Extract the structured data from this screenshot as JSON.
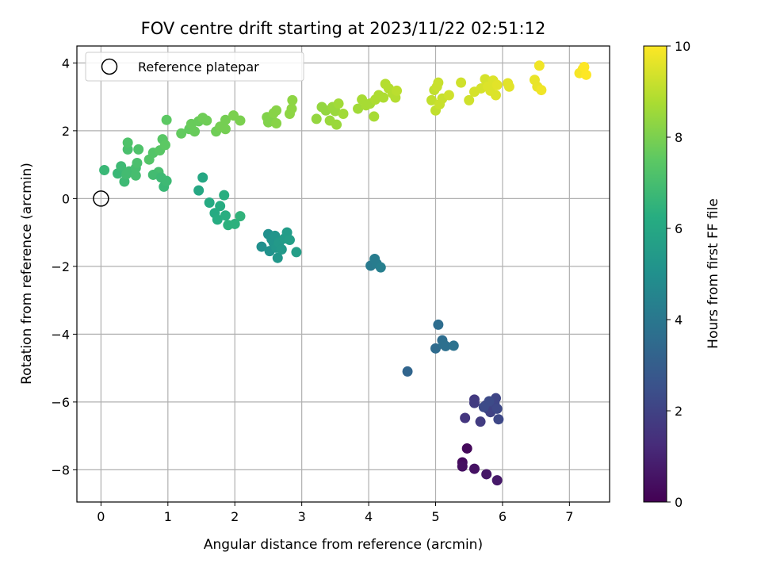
{
  "chart_data": {
    "type": "scatter",
    "title": "FOV centre drift starting at 2023/11/22 02:51:12",
    "xlabel": "Angular distance from reference (arcmin)",
    "ylabel": "Rotation from reference (arcmin)",
    "xlim": [
      -0.36,
      7.6
    ],
    "ylim": [
      -8.95,
      4.5
    ],
    "x_ticks": [
      0,
      1,
      2,
      3,
      4,
      5,
      6,
      7
    ],
    "y_ticks": [
      -8,
      -6,
      -4,
      -2,
      0,
      2,
      4
    ],
    "grid": true,
    "legend": {
      "position": "top-left",
      "entries": [
        "Reference platepar"
      ]
    },
    "reference_point": {
      "x": 0,
      "y": 0
    },
    "colorbar": {
      "label": "Hours from first FF file",
      "colormap": "viridis",
      "range": [
        0,
        10
      ],
      "ticks": [
        0,
        2,
        4,
        6,
        8,
        10
      ]
    },
    "points": [
      {
        "x": 5.47,
        "y": -7.37,
        "c": 0.2
      },
      {
        "x": 5.4,
        "y": -7.78,
        "c": 0.3
      },
      {
        "x": 5.4,
        "y": -7.9,
        "c": 0.4
      },
      {
        "x": 5.58,
        "y": -7.97,
        "c": 0.5
      },
      {
        "x": 5.76,
        "y": -8.13,
        "c": 0.6
      },
      {
        "x": 5.92,
        "y": -8.31,
        "c": 0.7
      },
      {
        "x": 5.44,
        "y": -6.47,
        "c": 1.6
      },
      {
        "x": 5.58,
        "y": -5.93,
        "c": 1.7
      },
      {
        "x": 5.58,
        "y": -6.03,
        "c": 1.8
      },
      {
        "x": 5.67,
        "y": -6.58,
        "c": 1.8
      },
      {
        "x": 5.75,
        "y": -6.1,
        "c": 1.9
      },
      {
        "x": 5.78,
        "y": -6.2,
        "c": 1.9
      },
      {
        "x": 5.82,
        "y": -6.3,
        "c": 2.0
      },
      {
        "x": 5.85,
        "y": -6.12,
        "c": 2.0
      },
      {
        "x": 5.88,
        "y": -6.05,
        "c": 2.1
      },
      {
        "x": 5.9,
        "y": -5.89,
        "c": 2.1
      },
      {
        "x": 5.92,
        "y": -6.2,
        "c": 2.2
      },
      {
        "x": 5.94,
        "y": -6.51,
        "c": 2.2
      },
      {
        "x": 5.8,
        "y": -5.98,
        "c": 2.3
      },
      {
        "x": 5.72,
        "y": -6.15,
        "c": 2.3
      },
      {
        "x": 4.58,
        "y": -5.1,
        "c": 3.3
      },
      {
        "x": 5.0,
        "y": -4.42,
        "c": 3.5
      },
      {
        "x": 5.04,
        "y": -3.72,
        "c": 3.6
      },
      {
        "x": 5.1,
        "y": -4.18,
        "c": 3.6
      },
      {
        "x": 5.12,
        "y": -4.3,
        "c": 3.7
      },
      {
        "x": 5.15,
        "y": -4.35,
        "c": 3.7
      },
      {
        "x": 5.27,
        "y": -4.34,
        "c": 3.8
      },
      {
        "x": 4.03,
        "y": -1.98,
        "c": 4.1
      },
      {
        "x": 4.09,
        "y": -1.78,
        "c": 4.2
      },
      {
        "x": 4.12,
        "y": -1.92,
        "c": 4.2
      },
      {
        "x": 4.18,
        "y": -2.03,
        "c": 4.3
      },
      {
        "x": 2.4,
        "y": -1.42,
        "c": 5.0
      },
      {
        "x": 2.5,
        "y": -1.05,
        "c": 5.0
      },
      {
        "x": 2.52,
        "y": -1.55,
        "c": 5.1
      },
      {
        "x": 2.55,
        "y": -1.2,
        "c": 5.1
      },
      {
        "x": 2.58,
        "y": -1.3,
        "c": 5.2
      },
      {
        "x": 2.6,
        "y": -1.1,
        "c": 5.2
      },
      {
        "x": 2.62,
        "y": -1.45,
        "c": 5.3
      },
      {
        "x": 2.64,
        "y": -1.75,
        "c": 5.3
      },
      {
        "x": 2.66,
        "y": -1.3,
        "c": 5.4
      },
      {
        "x": 2.7,
        "y": -1.5,
        "c": 5.4
      },
      {
        "x": 2.74,
        "y": -1.18,
        "c": 5.5
      },
      {
        "x": 2.78,
        "y": -1.0,
        "c": 5.5
      },
      {
        "x": 2.82,
        "y": -1.22,
        "c": 5.6
      },
      {
        "x": 2.92,
        "y": -1.58,
        "c": 5.6
      },
      {
        "x": 1.46,
        "y": 0.24,
        "c": 6.0
      },
      {
        "x": 1.52,
        "y": 0.62,
        "c": 6.0
      },
      {
        "x": 1.62,
        "y": -0.12,
        "c": 6.1
      },
      {
        "x": 1.7,
        "y": -0.43,
        "c": 6.1
      },
      {
        "x": 1.74,
        "y": -0.62,
        "c": 6.2
      },
      {
        "x": 1.78,
        "y": -0.22,
        "c": 6.2
      },
      {
        "x": 1.84,
        "y": 0.1,
        "c": 6.3
      },
      {
        "x": 1.86,
        "y": -0.5,
        "c": 6.3
      },
      {
        "x": 1.9,
        "y": -0.78,
        "c": 6.4
      },
      {
        "x": 2.0,
        "y": -0.75,
        "c": 6.4
      },
      {
        "x": 2.08,
        "y": -0.52,
        "c": 6.5
      },
      {
        "x": 0.05,
        "y": 0.84,
        "c": 6.7
      },
      {
        "x": 0.25,
        "y": 0.74,
        "c": 6.7
      },
      {
        "x": 0.3,
        "y": 0.95,
        "c": 6.8
      },
      {
        "x": 0.35,
        "y": 0.5,
        "c": 6.8
      },
      {
        "x": 0.38,
        "y": 0.72,
        "c": 6.9
      },
      {
        "x": 0.42,
        "y": 0.8,
        "c": 6.9
      },
      {
        "x": 0.52,
        "y": 0.68,
        "c": 7.0
      },
      {
        "x": 0.52,
        "y": 0.9,
        "c": 7.0
      },
      {
        "x": 0.54,
        "y": 1.05,
        "c": 7.1
      },
      {
        "x": 0.4,
        "y": 1.45,
        "c": 7.1
      },
      {
        "x": 0.4,
        "y": 1.65,
        "c": 7.2
      },
      {
        "x": 0.56,
        "y": 1.45,
        "c": 7.2
      },
      {
        "x": 0.72,
        "y": 1.15,
        "c": 7.3
      },
      {
        "x": 0.78,
        "y": 1.35,
        "c": 7.3
      },
      {
        "x": 0.86,
        "y": 0.78,
        "c": 7.0
      },
      {
        "x": 0.78,
        "y": 0.7,
        "c": 6.9
      },
      {
        "x": 0.9,
        "y": 0.62,
        "c": 6.8
      },
      {
        "x": 0.94,
        "y": 0.35,
        "c": 6.7
      },
      {
        "x": 0.98,
        "y": 0.52,
        "c": 6.8
      },
      {
        "x": 0.88,
        "y": 1.42,
        "c": 7.4
      },
      {
        "x": 0.92,
        "y": 1.75,
        "c": 7.4
      },
      {
        "x": 0.96,
        "y": 1.58,
        "c": 7.5
      },
      {
        "x": 0.98,
        "y": 2.32,
        "c": 7.5
      },
      {
        "x": 1.2,
        "y": 1.92,
        "c": 7.6
      },
      {
        "x": 1.32,
        "y": 2.05,
        "c": 7.6
      },
      {
        "x": 1.35,
        "y": 2.2,
        "c": 7.7
      },
      {
        "x": 1.4,
        "y": 1.98,
        "c": 7.7
      },
      {
        "x": 1.46,
        "y": 2.28,
        "c": 7.7
      },
      {
        "x": 1.52,
        "y": 2.38,
        "c": 7.8
      },
      {
        "x": 1.58,
        "y": 2.3,
        "c": 7.8
      },
      {
        "x": 1.72,
        "y": 1.98,
        "c": 7.8
      },
      {
        "x": 1.78,
        "y": 2.12,
        "c": 7.9
      },
      {
        "x": 1.86,
        "y": 2.05,
        "c": 7.9
      },
      {
        "x": 1.86,
        "y": 2.32,
        "c": 7.9
      },
      {
        "x": 1.98,
        "y": 2.45,
        "c": 8.0
      },
      {
        "x": 2.08,
        "y": 2.3,
        "c": 8.0
      },
      {
        "x": 2.48,
        "y": 2.4,
        "c": 8.1
      },
      {
        "x": 2.5,
        "y": 2.25,
        "c": 8.1
      },
      {
        "x": 2.55,
        "y": 2.35,
        "c": 8.1
      },
      {
        "x": 2.58,
        "y": 2.52,
        "c": 8.2
      },
      {
        "x": 2.62,
        "y": 2.6,
        "c": 8.2
      },
      {
        "x": 2.62,
        "y": 2.22,
        "c": 8.2
      },
      {
        "x": 2.82,
        "y": 2.5,
        "c": 8.3
      },
      {
        "x": 2.85,
        "y": 2.65,
        "c": 8.3
      },
      {
        "x": 2.86,
        "y": 2.9,
        "c": 8.3
      },
      {
        "x": 3.22,
        "y": 2.35,
        "c": 8.4
      },
      {
        "x": 3.3,
        "y": 2.7,
        "c": 8.4
      },
      {
        "x": 3.36,
        "y": 2.6,
        "c": 8.4
      },
      {
        "x": 3.42,
        "y": 2.3,
        "c": 8.5
      },
      {
        "x": 3.46,
        "y": 2.7,
        "c": 8.5
      },
      {
        "x": 3.5,
        "y": 2.58,
        "c": 8.5
      },
      {
        "x": 3.52,
        "y": 2.18,
        "c": 8.5
      },
      {
        "x": 3.55,
        "y": 2.8,
        "c": 8.6
      },
      {
        "x": 3.62,
        "y": 2.5,
        "c": 8.6
      },
      {
        "x": 3.84,
        "y": 2.65,
        "c": 8.6
      },
      {
        "x": 3.9,
        "y": 2.92,
        "c": 8.7
      },
      {
        "x": 3.96,
        "y": 2.75,
        "c": 8.7
      },
      {
        "x": 4.02,
        "y": 2.8,
        "c": 8.7
      },
      {
        "x": 4.08,
        "y": 2.42,
        "c": 8.7
      },
      {
        "x": 4.1,
        "y": 2.92,
        "c": 8.8
      },
      {
        "x": 4.15,
        "y": 3.05,
        "c": 8.8
      },
      {
        "x": 4.22,
        "y": 2.98,
        "c": 8.8
      },
      {
        "x": 4.25,
        "y": 3.38,
        "c": 8.9
      },
      {
        "x": 4.3,
        "y": 3.25,
        "c": 8.9
      },
      {
        "x": 4.36,
        "y": 3.1,
        "c": 8.9
      },
      {
        "x": 4.4,
        "y": 2.98,
        "c": 8.9
      },
      {
        "x": 4.42,
        "y": 3.18,
        "c": 9.0
      },
      {
        "x": 4.94,
        "y": 2.9,
        "c": 9.1
      },
      {
        "x": 4.98,
        "y": 3.2,
        "c": 9.1
      },
      {
        "x": 5.0,
        "y": 2.6,
        "c": 9.1
      },
      {
        "x": 5.02,
        "y": 3.3,
        "c": 9.2
      },
      {
        "x": 5.04,
        "y": 3.42,
        "c": 9.2
      },
      {
        "x": 5.06,
        "y": 2.78,
        "c": 9.2
      },
      {
        "x": 5.1,
        "y": 2.95,
        "c": 9.2
      },
      {
        "x": 5.2,
        "y": 3.05,
        "c": 9.3
      },
      {
        "x": 5.38,
        "y": 3.42,
        "c": 9.3
      },
      {
        "x": 5.5,
        "y": 2.9,
        "c": 9.3
      },
      {
        "x": 5.58,
        "y": 3.15,
        "c": 9.4
      },
      {
        "x": 5.68,
        "y": 3.25,
        "c": 9.4
      },
      {
        "x": 5.74,
        "y": 3.52,
        "c": 9.4
      },
      {
        "x": 5.78,
        "y": 3.3,
        "c": 9.5
      },
      {
        "x": 5.82,
        "y": 3.18,
        "c": 9.5
      },
      {
        "x": 5.86,
        "y": 3.48,
        "c": 9.5
      },
      {
        "x": 5.9,
        "y": 3.05,
        "c": 9.5
      },
      {
        "x": 5.92,
        "y": 3.35,
        "c": 9.6
      },
      {
        "x": 6.08,
        "y": 3.4,
        "c": 9.6
      },
      {
        "x": 6.1,
        "y": 3.3,
        "c": 9.6
      },
      {
        "x": 6.48,
        "y": 3.5,
        "c": 9.7
      },
      {
        "x": 6.52,
        "y": 3.3,
        "c": 9.7
      },
      {
        "x": 6.55,
        "y": 3.92,
        "c": 9.8
      },
      {
        "x": 6.58,
        "y": 3.2,
        "c": 9.8
      },
      {
        "x": 7.15,
        "y": 3.7,
        "c": 9.9
      },
      {
        "x": 7.2,
        "y": 3.82,
        "c": 9.9
      },
      {
        "x": 7.22,
        "y": 3.88,
        "c": 10.0
      },
      {
        "x": 7.25,
        "y": 3.65,
        "c": 10.0
      }
    ]
  }
}
